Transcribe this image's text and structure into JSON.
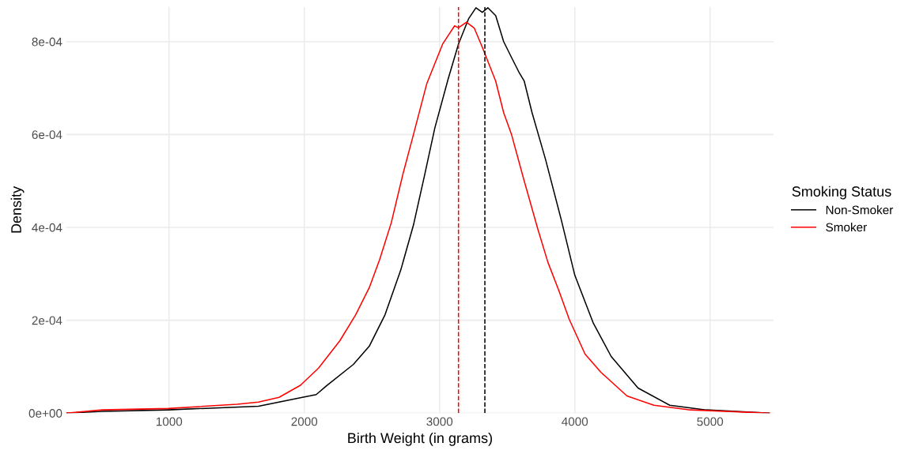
{
  "chart_data": {
    "type": "line",
    "xlabel": "Birth Weight (in grams)",
    "ylabel": "Density",
    "legend_title": "Smoking Status",
    "legend": "right",
    "grid": true,
    "xlim": [
      240,
      5470
    ],
    "xticks": [
      1000,
      2000,
      3000,
      4000,
      5000
    ],
    "ylim": [
      0,
      0.000875
    ],
    "yticks": [
      {
        "value": 0,
        "label": "0e+00"
      },
      {
        "value": 0.0002,
        "label": "2e-04"
      },
      {
        "value": 0.0004,
        "label": "4e-04"
      },
      {
        "value": 0.0006,
        "label": "6e-04"
      },
      {
        "value": 0.0008,
        "label": "8e-04"
      }
    ],
    "series": [
      {
        "name": "Non-Smoker",
        "color": "#000000",
        "x": [
          240,
          509,
          994,
          1661,
          1971,
          2088,
          2164,
          2363,
          2480,
          2597,
          2713,
          2807,
          2889,
          2965,
          3064,
          3140,
          3216,
          3269,
          3316,
          3357,
          3415,
          3474,
          3532,
          3591,
          3626,
          3684,
          3784,
          3901,
          4000,
          4135,
          4269,
          4468,
          4702,
          4971,
          5438
        ],
        "values": [
          0,
          4e-06,
          7e-06,
          1.5e-05,
          3.3e-05,
          4e-05,
          5.9e-05,
          0.000105,
          0.000144,
          0.000212,
          0.000308,
          0.000405,
          0.000512,
          0.000614,
          0.00072,
          0.000795,
          0.00085,
          0.000873,
          0.000863,
          0.000873,
          0.000856,
          0.0008,
          0.000766,
          0.000732,
          0.000715,
          0.000647,
          0.000546,
          0.000415,
          0.000297,
          0.000195,
          0.000122,
          5.4e-05,
          1.7e-05,
          7e-06,
          0
        ]
      },
      {
        "name": "Smoker",
        "color": "#ff0000",
        "x": [
          240,
          509,
          994,
          1503,
          1661,
          1813,
          1971,
          2105,
          2263,
          2380,
          2480,
          2556,
          2643,
          2731,
          2807,
          2906,
          3023,
          3111,
          3140,
          3199,
          3257,
          3316,
          3415,
          3474,
          3532,
          3626,
          3725,
          3801,
          3883,
          3959,
          4076,
          4193,
          4386,
          4585,
          4854,
          5438
        ],
        "values": [
          0,
          7e-06,
          1e-05,
          1.9e-05,
          2.4e-05,
          3.4e-05,
          6e-05,
          9.7e-05,
          0.000156,
          0.000212,
          0.00027,
          0.00033,
          0.00041,
          0.000517,
          0.0006,
          0.00071,
          0.000795,
          0.000834,
          0.00083,
          0.000842,
          0.000829,
          0.000788,
          0.000715,
          0.000647,
          0.0006,
          0.0005,
          0.000398,
          0.000325,
          0.000263,
          0.000202,
          0.000127,
          8.8e-05,
          3.7e-05,
          1.7e-05,
          7e-06,
          0
        ]
      }
    ],
    "ref_lines": [
      {
        "axis": "x",
        "value": 3335,
        "color": "#000000",
        "line_style": "dashed"
      },
      {
        "axis": "x",
        "value": 3140,
        "color": "#ff0000",
        "line_style": "dashed"
      }
    ]
  }
}
